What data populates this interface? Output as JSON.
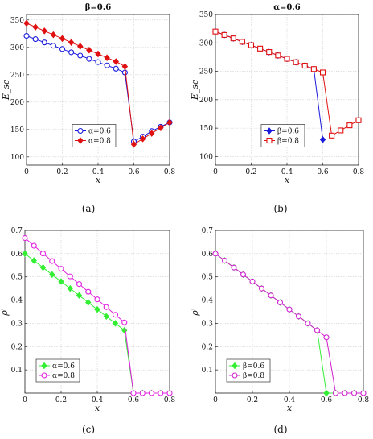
{
  "chart_data": [
    {
      "type": "line",
      "caption": "(a)",
      "title": "β=0.6",
      "xlabel": "x",
      "ylabel": "E_sc",
      "xlim": [
        0,
        0.8
      ],
      "ylim": [
        85,
        360
      ],
      "xticks": [
        0,
        0.2,
        0.4,
        0.6,
        0.8
      ],
      "xtick_labels": [
        "0",
        "0.2",
        "0.4",
        "0.6",
        "0.8"
      ],
      "yticks": [
        100,
        150,
        200,
        250,
        300,
        350
      ],
      "ytick_labels": [
        "100",
        "150",
        "200",
        "250",
        "300",
        "350"
      ],
      "grid": true,
      "legend_position": "center",
      "series": [
        {
          "name": "α=0.6",
          "color": "#1a1adc",
          "marker": "circle-open",
          "x": [
            0,
            0.05,
            0.1,
            0.15,
            0.2,
            0.25,
            0.3,
            0.35,
            0.4,
            0.45,
            0.5,
            0.55,
            0.6,
            0.65,
            0.7,
            0.75,
            0.8
          ],
          "y": [
            321,
            315,
            309,
            303,
            297,
            291,
            285,
            279,
            273,
            267,
            261,
            254,
            128,
            137,
            147,
            155,
            163
          ]
        },
        {
          "name": "α=0.8",
          "color": "#e01010",
          "marker": "diamond-filled",
          "x": [
            0,
            0.05,
            0.1,
            0.15,
            0.2,
            0.25,
            0.3,
            0.35,
            0.4,
            0.45,
            0.5,
            0.55,
            0.6,
            0.65,
            0.7,
            0.75,
            0.8
          ],
          "y": [
            344,
            337,
            330,
            323,
            316,
            309,
            302,
            295,
            288,
            281,
            274,
            265,
            123,
            133,
            143,
            153,
            163
          ]
        }
      ]
    },
    {
      "type": "line",
      "caption": "(b)",
      "title": "α=0.6",
      "xlabel": "x",
      "ylabel": "E_sc",
      "xlim": [
        0,
        0.8
      ],
      "ylim": [
        85,
        350
      ],
      "xticks": [
        0,
        0.2,
        0.4,
        0.6,
        0.8
      ],
      "xtick_labels": [
        "0",
        "0.2",
        "0.4",
        "0.6",
        "0.8"
      ],
      "yticks": [
        100,
        150,
        200,
        250,
        300,
        350
      ],
      "ytick_labels": [
        "100",
        "150",
        "200",
        "250",
        "300",
        "350"
      ],
      "grid": true,
      "legend_position": "center",
      "series": [
        {
          "name": "β=0.6",
          "color": "#1a1adc",
          "marker": "diamond-filled",
          "x": [
            0,
            0.05,
            0.1,
            0.15,
            0.2,
            0.25,
            0.3,
            0.35,
            0.4,
            0.45,
            0.5,
            0.55,
            0.6
          ],
          "y": [
            320,
            314,
            308,
            302,
            296,
            290,
            284,
            278,
            272,
            266,
            260,
            254,
            130
          ]
        },
        {
          "name": "β=0.8",
          "color": "#e01010",
          "marker": "square-open",
          "x": [
            0,
            0.05,
            0.1,
            0.15,
            0.2,
            0.25,
            0.3,
            0.35,
            0.4,
            0.45,
            0.5,
            0.55,
            0.6,
            0.65,
            0.7,
            0.75,
            0.8
          ],
          "y": [
            320,
            314,
            308,
            302,
            296,
            290,
            284,
            278,
            272,
            266,
            260,
            254,
            248,
            137,
            146,
            155,
            164
          ]
        }
      ]
    },
    {
      "type": "line",
      "caption": "(c)",
      "title": "",
      "xlabel": "x",
      "ylabel": "ρ'",
      "xlim": [
        0,
        0.8
      ],
      "ylim": [
        0,
        0.7
      ],
      "xticks": [
        0,
        0.2,
        0.4,
        0.6,
        0.8
      ],
      "xtick_labels": [
        "0",
        "0.2",
        "0.4",
        "0.6",
        "0.8"
      ],
      "yticks": [
        0.1,
        0.2,
        0.3,
        0.4,
        0.5,
        0.6,
        0.7
      ],
      "ytick_labels": [
        "0.1",
        "0.2",
        "0.3",
        "0.4",
        "0.5",
        "0.6",
        "0.7"
      ],
      "grid": true,
      "legend_position": "bottom-left",
      "series": [
        {
          "name": "α=0.6",
          "color": "#33ee33",
          "marker": "diamond-filled",
          "x": [
            0,
            0.05,
            0.1,
            0.15,
            0.2,
            0.25,
            0.3,
            0.35,
            0.4,
            0.45,
            0.5,
            0.55,
            0.6,
            0.65,
            0.7,
            0.75,
            0.8
          ],
          "y": [
            0.6,
            0.57,
            0.54,
            0.51,
            0.48,
            0.45,
            0.42,
            0.39,
            0.36,
            0.33,
            0.3,
            0.27,
            0,
            0,
            0,
            0,
            0
          ]
        },
        {
          "name": "α=0.8",
          "color": "#e020e0",
          "marker": "circle-open",
          "x": [
            0,
            0.05,
            0.1,
            0.15,
            0.2,
            0.25,
            0.3,
            0.35,
            0.4,
            0.45,
            0.5,
            0.55,
            0.6,
            0.65,
            0.7,
            0.75,
            0.8
          ],
          "y": [
            0.667,
            0.634,
            0.601,
            0.568,
            0.535,
            0.502,
            0.469,
            0.436,
            0.403,
            0.37,
            0.337,
            0.304,
            0,
            0,
            0,
            0,
            0
          ]
        }
      ]
    },
    {
      "type": "line",
      "caption": "(d)",
      "title": "",
      "xlabel": "x",
      "ylabel": "ρ'",
      "xlim": [
        0,
        0.8
      ],
      "ylim": [
        0,
        0.7
      ],
      "xticks": [
        0,
        0.2,
        0.4,
        0.6,
        0.8
      ],
      "xtick_labels": [
        "0",
        "0.2",
        "0.4",
        "0.6",
        "0.8"
      ],
      "yticks": [
        0.1,
        0.2,
        0.3,
        0.4,
        0.5,
        0.6,
        0.7
      ],
      "ytick_labels": [
        "0.1",
        "0.2",
        "0.3",
        "0.4",
        "0.5",
        "0.6",
        "0.7"
      ],
      "grid": true,
      "legend_position": "bottom-left",
      "series": [
        {
          "name": "β=0.6",
          "color": "#33ee33",
          "marker": "diamond-filled",
          "x": [
            0,
            0.05,
            0.1,
            0.15,
            0.2,
            0.25,
            0.3,
            0.35,
            0.4,
            0.45,
            0.5,
            0.55,
            0.6,
            0.65,
            0.7,
            0.75,
            0.8
          ],
          "y": [
            0.6,
            0.57,
            0.54,
            0.51,
            0.48,
            0.45,
            0.42,
            0.39,
            0.36,
            0.33,
            0.3,
            0.27,
            0,
            0,
            0,
            0,
            0
          ]
        },
        {
          "name": "β=0.8",
          "color": "#d020d0",
          "marker": "circle-open",
          "x": [
            0,
            0.05,
            0.1,
            0.15,
            0.2,
            0.25,
            0.3,
            0.35,
            0.4,
            0.45,
            0.5,
            0.55,
            0.6,
            0.65,
            0.7,
            0.75,
            0.8
          ],
          "y": [
            0.6,
            0.57,
            0.54,
            0.51,
            0.48,
            0.45,
            0.42,
            0.39,
            0.36,
            0.33,
            0.3,
            0.27,
            0.24,
            0,
            0,
            0,
            0
          ]
        }
      ]
    }
  ]
}
